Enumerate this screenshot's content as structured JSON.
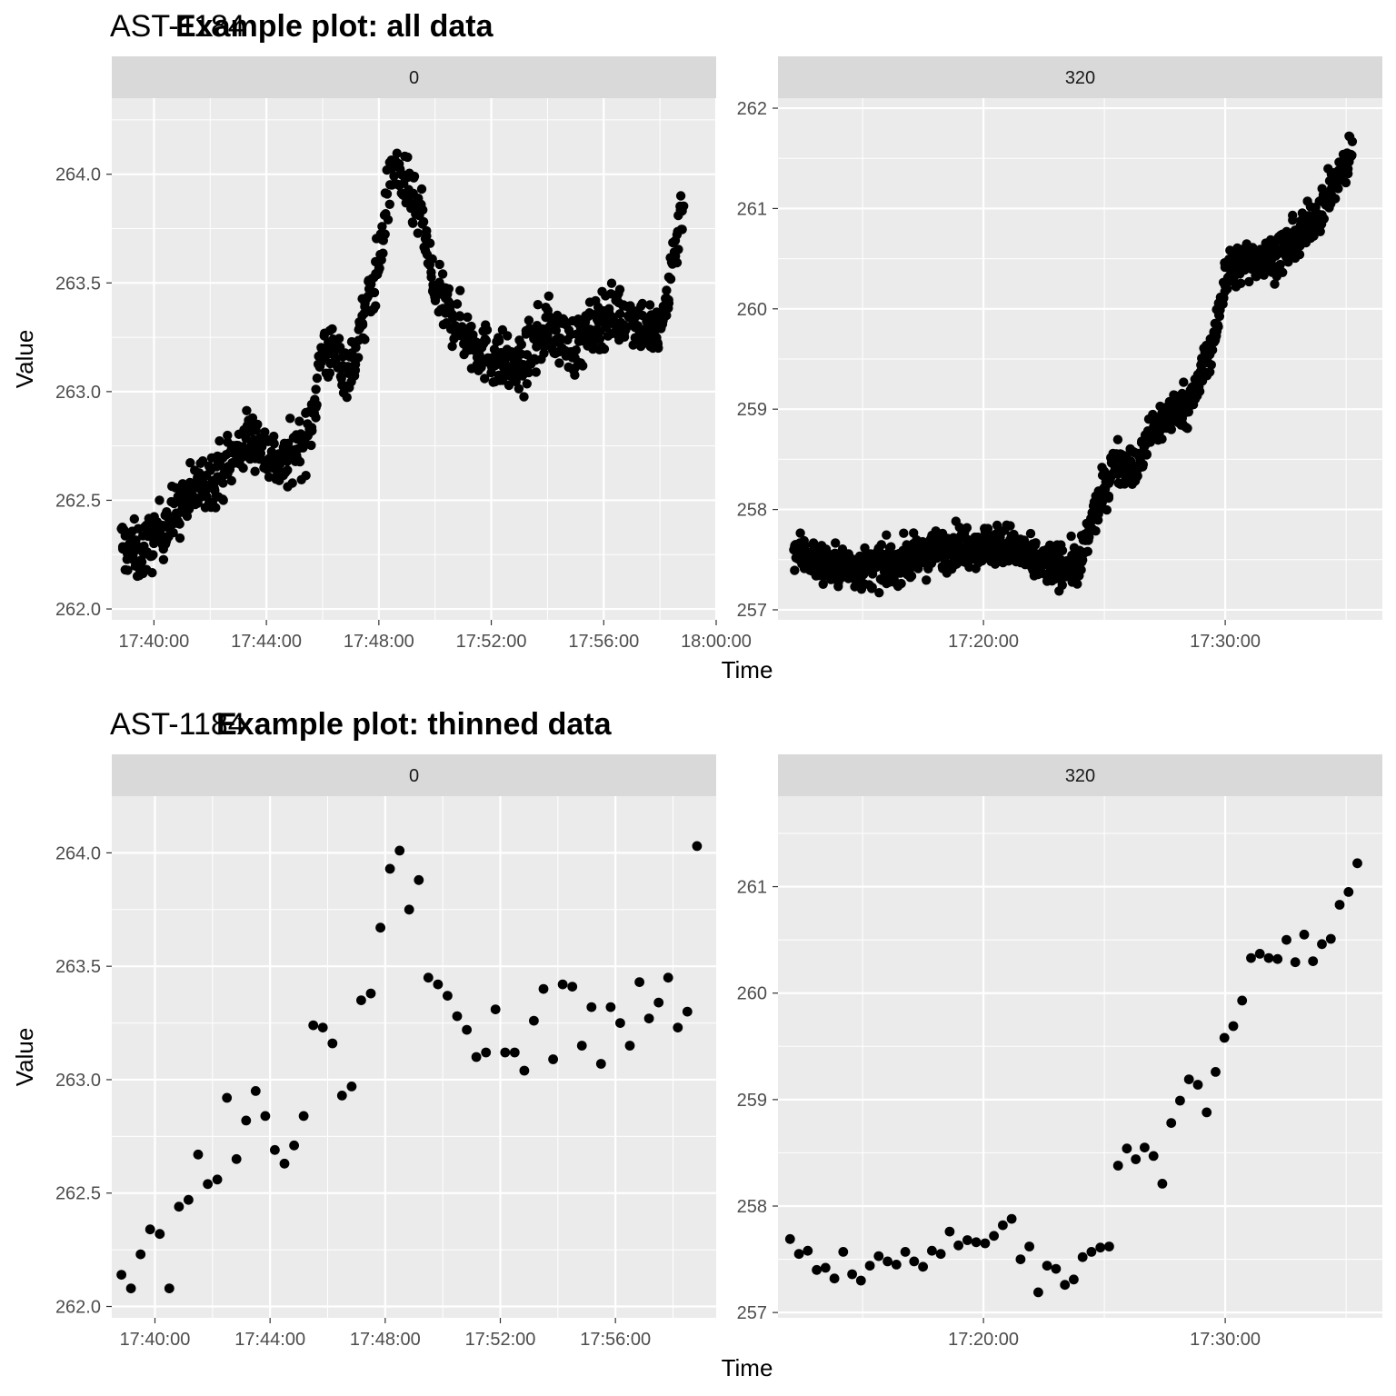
{
  "colors": {
    "panel_bg": "#EBEBEB",
    "strip_bg": "#D9D9D9",
    "grid": "#FFFFFF",
    "point": "#000000",
    "tick": "#333333"
  },
  "chart_data": [
    {
      "type": "scatter",
      "group_label": "AST-1184",
      "title": "Example plot: all data",
      "xlabel": "Time",
      "ylabel": "Value",
      "panels": [
        {
          "strip": "0",
          "xlim": [
            "17:38:30",
            "18:00:00"
          ],
          "ylim": [
            261.95,
            264.35
          ],
          "x_ticks": [
            "17:40:00",
            "17:44:00",
            "17:48:00",
            "17:52:00",
            "17:56:00",
            "18:00:00"
          ],
          "y_ticks": [
            "262.0",
            "262.5",
            "263.0",
            "263.5",
            "264.0"
          ],
          "density": 8,
          "noise": 0.13,
          "series": {
            "name": "",
            "x": [
              "17:38:50",
              "17:39:30",
              "17:40:30",
              "17:41:30",
              "17:42:30",
              "17:43:30",
              "17:44:30",
              "17:45:30",
              "17:46:00",
              "17:47:00",
              "17:48:00",
              "17:48:30",
              "17:49:30",
              "17:50:00",
              "17:51:30",
              "17:53:00",
              "17:54:00",
              "17:55:00",
              "17:56:00",
              "17:57:00",
              "17:58:00",
              "17:58:50"
            ],
            "y": [
              262.3,
              262.25,
              262.4,
              262.55,
              262.65,
              262.8,
              262.65,
              262.8,
              263.2,
              263.1,
              263.6,
              264.05,
              263.8,
              263.45,
              263.2,
              263.1,
              263.3,
              263.2,
              263.35,
              263.35,
              263.25,
              263.9
            ]
          }
        },
        {
          "strip": "320",
          "xlim": [
            "17:11:30",
            "17:36:30"
          ],
          "ylim": [
            256.9,
            262.1
          ],
          "x_ticks": [
            "17:20:00",
            "17:30:00"
          ],
          "y_ticks": [
            "257",
            "258",
            "259",
            "260",
            "261",
            "262"
          ],
          "density": 9,
          "noise": 0.2,
          "series": {
            "name": "",
            "x": [
              "17:12:10",
              "17:13:30",
              "17:15:00",
              "17:17:00",
              "17:19:00",
              "17:21:00",
              "17:22:00",
              "17:23:00",
              "17:24:00",
              "17:24:30",
              "17:25:30",
              "17:26:20",
              "17:27:00",
              "17:28:00",
              "17:28:40",
              "17:29:40",
              "17:30:00",
              "17:31:00",
              "17:32:00",
              "17:33:00",
              "17:34:00",
              "17:35:00",
              "17:35:15"
            ],
            "y": [
              257.6,
              257.45,
              257.4,
              257.5,
              257.65,
              257.65,
              257.5,
              257.45,
              257.45,
              257.9,
              258.5,
              258.4,
              258.8,
              259.0,
              259.1,
              259.8,
              260.35,
              260.5,
              260.5,
              260.7,
              261.0,
              261.45,
              261.6
            ]
          }
        }
      ]
    },
    {
      "type": "scatter",
      "group_label": "AST-1184",
      "title": "Example plot: thinned data",
      "xlabel": "Time",
      "ylabel": "Value",
      "panels": [
        {
          "strip": "0",
          "xlim": [
            "17:38:30",
            "17:59:30"
          ],
          "ylim": [
            261.95,
            264.25
          ],
          "x_ticks": [
            "17:40:00",
            "17:44:00",
            "17:48:00",
            "17:52:00",
            "17:56:00"
          ],
          "y_ticks": [
            "262.0",
            "262.5",
            "263.0",
            "263.5",
            "264.0"
          ],
          "series": {
            "name": "",
            "x": [
              "17:38:50",
              "17:39:10",
              "17:39:30",
              "17:39:50",
              "17:40:10",
              "17:40:30",
              "17:40:50",
              "17:41:10",
              "17:41:30",
              "17:41:50",
              "17:42:10",
              "17:42:30",
              "17:42:50",
              "17:43:10",
              "17:43:30",
              "17:43:50",
              "17:44:10",
              "17:44:30",
              "17:44:50",
              "17:45:10",
              "17:45:30",
              "17:45:50",
              "17:46:10",
              "17:46:30",
              "17:46:50",
              "17:47:10",
              "17:47:30",
              "17:47:50",
              "17:48:10",
              "17:48:30",
              "17:48:50",
              "17:49:10",
              "17:49:30",
              "17:49:50",
              "17:50:10",
              "17:50:30",
              "17:50:50",
              "17:51:10",
              "17:51:30",
              "17:51:50",
              "17:52:10",
              "17:52:30",
              "17:52:50",
              "17:53:10",
              "17:53:30",
              "17:53:50",
              "17:54:10",
              "17:54:30",
              "17:54:50",
              "17:55:10",
              "17:55:30",
              "17:55:50",
              "17:56:10",
              "17:56:30",
              "17:56:50",
              "17:57:10",
              "17:57:30",
              "17:57:50",
              "17:58:10",
              "17:58:30",
              "17:58:50"
            ],
            "y": [
              262.14,
              262.08,
              262.23,
              262.34,
              262.32,
              262.08,
              262.44,
              262.47,
              262.67,
              262.54,
              262.56,
              262.92,
              262.65,
              262.82,
              262.95,
              262.84,
              262.69,
              262.63,
              262.71,
              262.84,
              263.24,
              263.23,
              263.16,
              262.93,
              262.97,
              263.35,
              263.38,
              263.67,
              263.93,
              264.01,
              263.75,
              263.88,
              263.45,
              263.42,
              263.37,
              263.28,
              263.22,
              263.1,
              263.12,
              263.31,
              263.12,
              263.12,
              263.04,
              263.26,
              263.4,
              263.09,
              263.42,
              263.41,
              263.15,
              263.32,
              263.07,
              263.32,
              263.25,
              263.15,
              263.43,
              263.27,
              263.34,
              263.45,
              263.23,
              263.3,
              264.03
            ]
          }
        },
        {
          "strip": "320",
          "xlim": [
            "17:11:30",
            "17:36:30"
          ],
          "ylim": [
            256.95,
            261.85
          ],
          "x_ticks": [
            "17:20:00",
            "17:30:00"
          ],
          "y_ticks": [
            "257",
            "258",
            "259",
            "260",
            "261"
          ],
          "series": {
            "name": "",
            "x": [
              "17:12:00",
              "17:12:22",
              "17:12:44",
              "17:13:06",
              "17:13:28",
              "17:13:50",
              "17:14:12",
              "17:14:34",
              "17:14:56",
              "17:15:18",
              "17:15:40",
              "17:16:02",
              "17:16:24",
              "17:16:46",
              "17:17:08",
              "17:17:30",
              "17:17:52",
              "17:18:14",
              "17:18:36",
              "17:18:58",
              "17:19:20",
              "17:19:42",
              "17:20:04",
              "17:20:26",
              "17:20:48",
              "17:21:10",
              "17:21:32",
              "17:21:54",
              "17:22:16",
              "17:22:38",
              "17:23:00",
              "17:23:22",
              "17:23:44",
              "17:24:06",
              "17:24:28",
              "17:24:50",
              "17:25:12",
              "17:25:34",
              "17:25:56",
              "17:26:18",
              "17:26:40",
              "17:27:02",
              "17:27:24",
              "17:27:46",
              "17:28:08",
              "17:28:30",
              "17:28:52",
              "17:29:14",
              "17:29:36",
              "17:29:58",
              "17:30:20",
              "17:30:42",
              "17:31:04",
              "17:31:26",
              "17:31:48",
              "17:32:10",
              "17:32:32",
              "17:32:54",
              "17:33:16",
              "17:33:38",
              "17:34:00",
              "17:34:22",
              "17:34:44",
              "17:35:06",
              "17:35:28"
            ],
            "y": [
              257.69,
              257.55,
              257.58,
              257.4,
              257.42,
              257.32,
              257.57,
              257.36,
              257.3,
              257.44,
              257.53,
              257.48,
              257.45,
              257.57,
              257.48,
              257.43,
              257.58,
              257.55,
              257.76,
              257.63,
              257.68,
              257.66,
              257.65,
              257.72,
              257.82,
              257.88,
              257.5,
              257.62,
              257.19,
              257.44,
              257.41,
              257.26,
              257.31,
              257.52,
              257.57,
              257.61,
              257.62,
              258.38,
              258.54,
              258.44,
              258.55,
              258.47,
              258.21,
              258.78,
              258.99,
              259.19,
              259.14,
              258.88,
              259.26,
              259.58,
              259.69,
              259.93,
              260.33,
              260.37,
              260.33,
              260.32,
              260.5,
              260.29,
              260.55,
              260.3,
              260.46,
              260.51,
              260.83,
              260.95,
              261.22
            ]
          }
        }
      ]
    }
  ]
}
